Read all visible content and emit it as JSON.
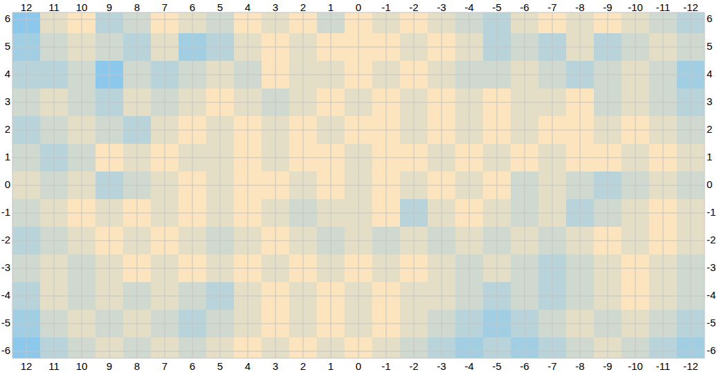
{
  "chart_data": {
    "type": "heatmap",
    "x": [
      12,
      11,
      10,
      9,
      8,
      7,
      6,
      5,
      4,
      3,
      2,
      1,
      0,
      -1,
      -2,
      -3,
      -4,
      -5,
      -6,
      -7,
      -8,
      -9,
      -10,
      -11,
      -12
    ],
    "y": [
      6,
      5,
      4,
      3,
      2,
      1,
      0,
      -1,
      -2,
      -3,
      -4,
      -5,
      -6
    ],
    "cells": [
      [
        0.55,
        0.35,
        0.3,
        0.45,
        0.4,
        0.3,
        0.35,
        0.4,
        0.3,
        0.35,
        0.3,
        0.4,
        0.3,
        0.35,
        0.3,
        0.35,
        0.4,
        0.45,
        0.35,
        0.3,
        0.35,
        0.3,
        0.35,
        0.4,
        0.45
      ],
      [
        0.5,
        0.4,
        0.35,
        0.4,
        0.45,
        0.35,
        0.5,
        0.45,
        0.35,
        0.3,
        0.35,
        0.3,
        0.3,
        0.3,
        0.35,
        0.3,
        0.35,
        0.45,
        0.4,
        0.45,
        0.35,
        0.45,
        0.4,
        0.35,
        0.4
      ],
      [
        0.45,
        0.45,
        0.4,
        0.55,
        0.4,
        0.45,
        0.4,
        0.35,
        0.4,
        0.3,
        0.35,
        0.35,
        0.3,
        0.35,
        0.3,
        0.35,
        0.4,
        0.4,
        0.35,
        0.4,
        0.45,
        0.4,
        0.35,
        0.4,
        0.5
      ],
      [
        0.4,
        0.35,
        0.4,
        0.45,
        0.35,
        0.4,
        0.35,
        0.3,
        0.35,
        0.4,
        0.35,
        0.3,
        0.35,
        0.3,
        0.35,
        0.3,
        0.35,
        0.3,
        0.35,
        0.35,
        0.3,
        0.4,
        0.35,
        0.4,
        0.45
      ],
      [
        0.45,
        0.4,
        0.35,
        0.4,
        0.45,
        0.35,
        0.3,
        0.35,
        0.3,
        0.35,
        0.3,
        0.35,
        0.3,
        0.3,
        0.35,
        0.3,
        0.35,
        0.3,
        0.35,
        0.3,
        0.3,
        0.35,
        0.3,
        0.35,
        0.4
      ],
      [
        0.4,
        0.45,
        0.4,
        0.3,
        0.35,
        0.3,
        0.35,
        0.35,
        0.3,
        0.35,
        0.3,
        0.3,
        0.35,
        0.3,
        0.3,
        0.35,
        0.3,
        0.35,
        0.3,
        0.35,
        0.3,
        0.3,
        0.35,
        0.3,
        0.35
      ],
      [
        0.35,
        0.4,
        0.35,
        0.45,
        0.4,
        0.35,
        0.3,
        0.35,
        0.3,
        0.3,
        0.35,
        0.3,
        0.35,
        0.3,
        0.35,
        0.3,
        0.35,
        0.3,
        0.4,
        0.35,
        0.4,
        0.45,
        0.4,
        0.35,
        0.4
      ],
      [
        0.4,
        0.35,
        0.3,
        0.35,
        0.3,
        0.35,
        0.3,
        0.35,
        0.3,
        0.35,
        0.4,
        0.35,
        0.35,
        0.3,
        0.45,
        0.35,
        0.3,
        0.35,
        0.4,
        0.35,
        0.45,
        0.4,
        0.35,
        0.3,
        0.35
      ],
      [
        0.45,
        0.4,
        0.35,
        0.3,
        0.35,
        0.3,
        0.35,
        0.4,
        0.35,
        0.3,
        0.35,
        0.4,
        0.35,
        0.4,
        0.35,
        0.4,
        0.35,
        0.4,
        0.35,
        0.4,
        0.35,
        0.3,
        0.35,
        0.3,
        0.35
      ],
      [
        0.4,
        0.35,
        0.4,
        0.35,
        0.3,
        0.35,
        0.3,
        0.35,
        0.3,
        0.35,
        0.3,
        0.35,
        0.3,
        0.35,
        0.3,
        0.35,
        0.4,
        0.35,
        0.4,
        0.45,
        0.4,
        0.35,
        0.3,
        0.35,
        0.4
      ],
      [
        0.45,
        0.35,
        0.4,
        0.35,
        0.4,
        0.35,
        0.4,
        0.45,
        0.35,
        0.3,
        0.35,
        0.3,
        0.35,
        0.3,
        0.35,
        0.35,
        0.4,
        0.45,
        0.4,
        0.45,
        0.4,
        0.35,
        0.3,
        0.35,
        0.4
      ],
      [
        0.5,
        0.4,
        0.35,
        0.4,
        0.35,
        0.4,
        0.45,
        0.4,
        0.35,
        0.3,
        0.35,
        0.3,
        0.35,
        0.3,
        0.35,
        0.4,
        0.45,
        0.5,
        0.45,
        0.4,
        0.35,
        0.4,
        0.35,
        0.4,
        0.45
      ],
      [
        0.55,
        0.45,
        0.4,
        0.35,
        0.4,
        0.35,
        0.4,
        0.35,
        0.3,
        0.35,
        0.3,
        0.35,
        0.3,
        0.35,
        0.4,
        0.45,
        0.5,
        0.45,
        0.5,
        0.45,
        0.4,
        0.35,
        0.4,
        0.45,
        0.5
      ]
    ],
    "xlim": [
      12.5,
      -12.5
    ],
    "ylim": [
      -6.25,
      6.25
    ],
    "xticks": [
      12,
      11,
      10,
      9,
      8,
      7,
      6,
      5,
      4,
      3,
      2,
      1,
      0,
      -1,
      -2,
      -3,
      -4,
      -5,
      -6,
      -7,
      -8,
      -9,
      -10,
      -11,
      -12
    ],
    "yticks": [
      6,
      5,
      4,
      3,
      2,
      1,
      0,
      -1,
      -2,
      -3,
      -4,
      -5,
      -6
    ],
    "grid": true
  }
}
